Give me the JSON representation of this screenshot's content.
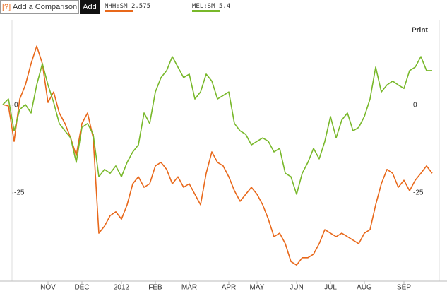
{
  "ui": {
    "help": "[?]",
    "input_placeholder": "Add a Comparison",
    "add_button": "Add",
    "print": "Print"
  },
  "chart_data": {
    "type": "line",
    "categories": [
      null,
      null,
      null,
      null,
      null,
      null,
      null,
      null,
      "NOV",
      null,
      null,
      null,
      null,
      null,
      "DEC",
      null,
      null,
      null,
      null,
      null,
      null,
      "2012",
      null,
      null,
      null,
      null,
      null,
      "FEB",
      null,
      null,
      null,
      null,
      null,
      "MAR",
      null,
      null,
      null,
      null,
      null,
      null,
      "APR",
      null,
      null,
      null,
      null,
      "MAY",
      null,
      null,
      null,
      null,
      null,
      null,
      "JUN",
      null,
      null,
      null,
      null,
      null,
      "JUL",
      null,
      null,
      null,
      null,
      null,
      "AUG",
      null,
      null,
      null,
      null,
      null,
      null,
      "SEP",
      null,
      null,
      null,
      null,
      null
    ],
    "series": [
      {
        "name": "NHH:SM",
        "quote": "2.575",
        "color": "#e8681a",
        "values": [
          0.2,
          -0.2,
          -10.3,
          1.8,
          5.8,
          11.9,
          16.9,
          11.9,
          0.8,
          3.8,
          -2.2,
          -5.2,
          -9.3,
          -14.3,
          -5.2,
          -2.2,
          -9.3,
          -36.5,
          -34.5,
          -31.5,
          -30.4,
          -32.5,
          -28.4,
          -22.4,
          -20.4,
          -23.4,
          -22.4,
          -17.3,
          -16.3,
          -18.3,
          -22.4,
          -20.4,
          -23.4,
          -22.4,
          -25.4,
          -28.4,
          -19.4,
          -13.3,
          -16.3,
          -17.3,
          -20.4,
          -24.4,
          -27.4,
          -25.4,
          -23.4,
          -25.4,
          -28.4,
          -32.5,
          -37.5,
          -36.5,
          -39.5,
          -44.6,
          -45.6,
          -43.5,
          -43.5,
          -42.5,
          -39.5,
          -35.5,
          -36.5,
          -37.5,
          -36.5,
          -37.5,
          -38.5,
          -39.5,
          -36.5,
          -35.5,
          -28.4,
          -22.4,
          -18.3,
          -19.4,
          -23.4,
          -21.4,
          -24.4,
          -21.4,
          -19.4,
          -17.3,
          -19.4
        ]
      },
      {
        "name": "MEL:SM",
        "quote": "5.4",
        "color": "#78b82a",
        "values": [
          0.2,
          1.8,
          -7.3,
          -1.2,
          0.2,
          -2.2,
          5.8,
          11.9,
          5.8,
          0.8,
          -5.2,
          -7.3,
          -9.3,
          -16.3,
          -6.3,
          -5.2,
          -8.3,
          -20.4,
          -18.3,
          -19.4,
          -17.3,
          -20.4,
          -16.3,
          -13.3,
          -11.3,
          -2.2,
          -5.2,
          3.8,
          7.9,
          9.9,
          13.9,
          10.9,
          7.9,
          8.9,
          1.8,
          3.8,
          8.9,
          6.9,
          1.8,
          2.8,
          3.8,
          -5.2,
          -7.3,
          -8.3,
          -11.3,
          -10.3,
          -9.3,
          -10.3,
          -13.3,
          -12.3,
          -19.4,
          -20.4,
          -25.4,
          -19.4,
          -16.3,
          -12.3,
          -15.3,
          -10.3,
          -3.2,
          -9.3,
          -4.2,
          -2.2,
          -7.3,
          -6.3,
          -3.2,
          1.8,
          10.9,
          3.8,
          5.8,
          6.9,
          5.8,
          4.8,
          9.9,
          10.9,
          13.9,
          9.9,
          9.9
        ]
      }
    ],
    "ylim": [
      -50,
      24
    ],
    "yticks": [
      0,
      -25
    ]
  }
}
